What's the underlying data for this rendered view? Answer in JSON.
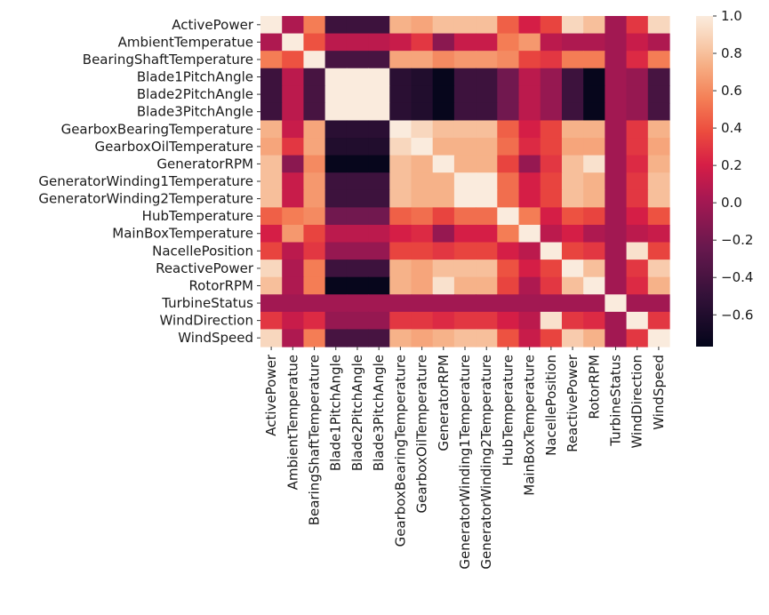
{
  "chart_data": {
    "type": "heatmap",
    "title": "",
    "xlabel": "",
    "ylabel": "",
    "labels": [
      "ActivePower",
      "AmbientTemperatue",
      "BearingShaftTemperature",
      "Blade1PitchAngle",
      "Blade2PitchAngle",
      "Blade3PitchAngle",
      "GearboxBearingTemperature",
      "GearboxOilTemperature",
      "GeneratorRPM",
      "GeneratorWinding1Temperature",
      "GeneratorWinding2Temperature",
      "HubTemperature",
      "MainBoxTemperature",
      "NacellePosition",
      "ReactivePower",
      "RotorRPM",
      "TurbineStatus",
      "WindDirection",
      "WindSpeed"
    ],
    "matrix": [
      [
        1.0,
        0.05,
        0.55,
        -0.45,
        -0.45,
        -0.45,
        0.75,
        0.7,
        0.8,
        0.8,
        0.8,
        0.45,
        0.2,
        0.35,
        0.9,
        0.8,
        0.0,
        0.3,
        0.9
      ],
      [
        0.05,
        1.0,
        0.4,
        0.1,
        0.1,
        0.1,
        0.15,
        0.3,
        -0.1,
        0.15,
        0.15,
        0.55,
        0.65,
        0.1,
        0.05,
        0.05,
        0.0,
        0.15,
        0.05
      ],
      [
        0.55,
        0.4,
        1.0,
        -0.4,
        -0.4,
        -0.4,
        0.7,
        0.7,
        0.6,
        0.65,
        0.65,
        0.6,
        0.35,
        0.3,
        0.55,
        0.55,
        0.0,
        0.25,
        0.55
      ],
      [
        -0.45,
        0.1,
        -0.4,
        1.0,
        1.0,
        1.0,
        -0.55,
        -0.6,
        -0.75,
        -0.45,
        -0.45,
        -0.2,
        0.1,
        -0.05,
        -0.45,
        -0.75,
        0.0,
        -0.05,
        -0.4
      ],
      [
        -0.45,
        0.1,
        -0.4,
        1.0,
        1.0,
        1.0,
        -0.55,
        -0.6,
        -0.75,
        -0.45,
        -0.45,
        -0.2,
        0.1,
        -0.05,
        -0.45,
        -0.75,
        0.0,
        -0.05,
        -0.4
      ],
      [
        -0.45,
        0.1,
        -0.4,
        1.0,
        1.0,
        1.0,
        -0.55,
        -0.6,
        -0.75,
        -0.45,
        -0.45,
        -0.2,
        0.1,
        -0.05,
        -0.45,
        -0.75,
        0.0,
        -0.05,
        -0.4
      ],
      [
        0.75,
        0.15,
        0.7,
        -0.55,
        -0.55,
        -0.55,
        1.0,
        0.9,
        0.8,
        0.8,
        0.8,
        0.45,
        0.2,
        0.35,
        0.75,
        0.75,
        0.0,
        0.3,
        0.75
      ],
      [
        0.7,
        0.3,
        0.7,
        -0.6,
        -0.6,
        -0.6,
        0.9,
        1.0,
        0.75,
        0.75,
        0.75,
        0.5,
        0.25,
        0.35,
        0.7,
        0.7,
        0.0,
        0.3,
        0.7
      ],
      [
        0.8,
        -0.1,
        0.6,
        -0.75,
        -0.75,
        -0.75,
        0.8,
        0.75,
        1.0,
        0.75,
        0.75,
        0.35,
        -0.05,
        0.3,
        0.8,
        0.95,
        0.0,
        0.25,
        0.75
      ],
      [
        0.8,
        0.15,
        0.65,
        -0.45,
        -0.45,
        -0.45,
        0.8,
        0.75,
        0.75,
        1.0,
        1.0,
        0.5,
        0.2,
        0.35,
        0.8,
        0.75,
        0.0,
        0.3,
        0.8
      ],
      [
        0.8,
        0.15,
        0.65,
        -0.45,
        -0.45,
        -0.45,
        0.8,
        0.75,
        0.75,
        1.0,
        1.0,
        0.5,
        0.2,
        0.35,
        0.8,
        0.75,
        0.0,
        0.3,
        0.8
      ],
      [
        0.45,
        0.55,
        0.6,
        -0.2,
        -0.2,
        -0.2,
        0.45,
        0.5,
        0.35,
        0.5,
        0.5,
        1.0,
        0.55,
        0.2,
        0.4,
        0.35,
        0.0,
        0.2,
        0.4
      ],
      [
        0.2,
        0.65,
        0.35,
        0.1,
        0.1,
        0.1,
        0.2,
        0.25,
        -0.05,
        0.2,
        0.2,
        0.55,
        1.0,
        0.1,
        0.2,
        0.05,
        0.0,
        0.1,
        0.15
      ],
      [
        0.35,
        0.1,
        0.3,
        -0.05,
        -0.05,
        -0.05,
        0.35,
        0.35,
        0.3,
        0.35,
        0.35,
        0.2,
        0.1,
        1.0,
        0.35,
        0.3,
        0.0,
        0.95,
        0.35
      ],
      [
        0.9,
        0.05,
        0.55,
        -0.45,
        -0.45,
        -0.45,
        0.75,
        0.7,
        0.8,
        0.8,
        0.8,
        0.4,
        0.2,
        0.35,
        1.0,
        0.8,
        0.0,
        0.3,
        0.85
      ],
      [
        0.8,
        0.05,
        0.55,
        -0.75,
        -0.75,
        -0.75,
        0.75,
        0.7,
        0.95,
        0.75,
        0.75,
        0.35,
        0.05,
        0.3,
        0.8,
        1.0,
        0.0,
        0.25,
        0.75
      ],
      [
        0.0,
        0.0,
        0.0,
        0.0,
        0.0,
        0.0,
        0.0,
        0.0,
        0.0,
        0.0,
        0.0,
        0.0,
        0.0,
        0.0,
        0.0,
        0.0,
        1.0,
        0.0,
        0.0
      ],
      [
        0.3,
        0.15,
        0.25,
        -0.05,
        -0.05,
        -0.05,
        0.3,
        0.3,
        0.25,
        0.3,
        0.3,
        0.2,
        0.1,
        0.95,
        0.3,
        0.25,
        0.0,
        1.0,
        0.3
      ],
      [
        0.9,
        0.05,
        0.55,
        -0.4,
        -0.4,
        -0.4,
        0.75,
        0.7,
        0.75,
        0.8,
        0.8,
        0.4,
        0.15,
        0.35,
        0.85,
        0.75,
        0.0,
        0.3,
        1.0
      ]
    ],
    "colorbar": {
      "ticks": [
        "1.0",
        "0.8",
        "0.6",
        "0.4",
        "0.2",
        "0.0",
        "−0.2",
        "−0.4",
        "−0.6"
      ],
      "tick_values": [
        1.0,
        0.8,
        0.6,
        0.4,
        0.2,
        0.0,
        -0.2,
        -0.4,
        -0.6
      ],
      "vmin": -0.77,
      "vmax": 1.0
    },
    "colormap": "rocket"
  }
}
